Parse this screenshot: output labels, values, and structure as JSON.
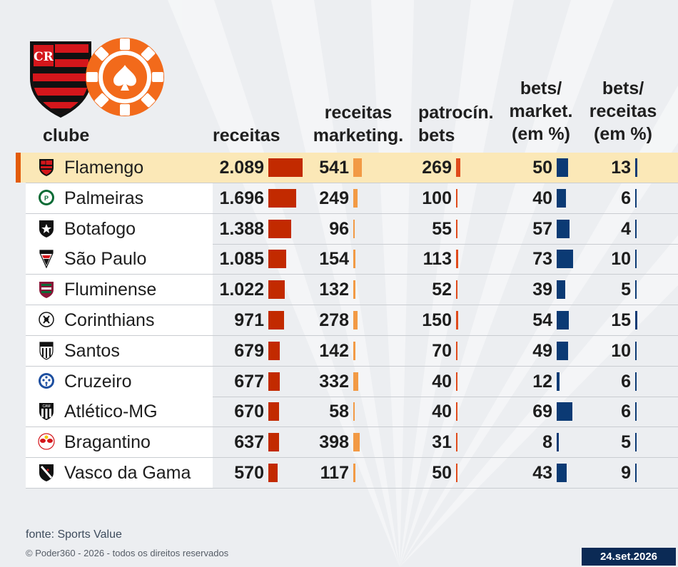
{
  "colors": {
    "receitas": "#c22a00",
    "marketing": "#f29a45",
    "patrocinio": "#e04a1a",
    "bets_share": "#0b3a74",
    "highlight_row": "#fbe8b7",
    "highlight_accent": "#e35b09",
    "date_box": "#0b2a55"
  },
  "icons": {
    "club_logo": "flamengo-crest-icon",
    "bet_logo": "poker-chip-spade-icon"
  },
  "headers": {
    "clube": "clube",
    "receitas": "receitas",
    "marketing_1": "receitas",
    "marketing_2": "marketing.",
    "patrocinio_1": "patrocín.",
    "patrocinio_2": "bets",
    "bets_market_1": "bets/",
    "bets_market_2": "market.",
    "bets_market_3": "(em %)",
    "bets_receitas_1": "bets/",
    "bets_receitas_2": "receitas",
    "bets_receitas_3": "(em %)"
  },
  "chart_data": {
    "type": "table",
    "columns": [
      "clube",
      "receitas",
      "receitas marketing.",
      "patrocín. bets",
      "bets/ market. (em %)",
      "bets/ receitas (em %)"
    ],
    "highlighted_row": "Flamengo",
    "rows": [
      {
        "club": "Flamengo",
        "crest": "flamengo-crest-icon",
        "receitas": "2.089",
        "receitas_v": 2089,
        "marketing": "541",
        "marketing_v": 541,
        "patrocinio": "269",
        "patrocinio_v": 269,
        "bets_market": "50",
        "bets_market_v": 50,
        "bets_receitas": "13",
        "bets_receitas_v": 13
      },
      {
        "club": "Palmeiras",
        "crest": "palmeiras-crest-icon",
        "receitas": "1.696",
        "receitas_v": 1696,
        "marketing": "249",
        "marketing_v": 249,
        "patrocinio": "100",
        "patrocinio_v": 100,
        "bets_market": "40",
        "bets_market_v": 40,
        "bets_receitas": "6",
        "bets_receitas_v": 6
      },
      {
        "club": "Botafogo",
        "crest": "botafogo-crest-icon",
        "receitas": "1.388",
        "receitas_v": 1388,
        "marketing": "96",
        "marketing_v": 96,
        "patrocinio": "55",
        "patrocinio_v": 55,
        "bets_market": "57",
        "bets_market_v": 57,
        "bets_receitas": "4",
        "bets_receitas_v": 4
      },
      {
        "club": "São Paulo",
        "crest": "sao-paulo-crest-icon",
        "receitas": "1.085",
        "receitas_v": 1085,
        "marketing": "154",
        "marketing_v": 154,
        "patrocinio": "113",
        "patrocinio_v": 113,
        "bets_market": "73",
        "bets_market_v": 73,
        "bets_receitas": "10",
        "bets_receitas_v": 10
      },
      {
        "club": "Fluminense",
        "crest": "fluminense-crest-icon",
        "receitas": "1.022",
        "receitas_v": 1022,
        "marketing": "132",
        "marketing_v": 132,
        "patrocinio": "52",
        "patrocinio_v": 52,
        "bets_market": "39",
        "bets_market_v": 39,
        "bets_receitas": "5",
        "bets_receitas_v": 5
      },
      {
        "club": "Corinthians",
        "crest": "corinthians-crest-icon",
        "receitas": "971",
        "receitas_v": 971,
        "marketing": "278",
        "marketing_v": 278,
        "patrocinio": "150",
        "patrocinio_v": 150,
        "bets_market": "54",
        "bets_market_v": 54,
        "bets_receitas": "15",
        "bets_receitas_v": 15
      },
      {
        "club": "Santos",
        "crest": "santos-crest-icon",
        "receitas": "679",
        "receitas_v": 679,
        "marketing": "142",
        "marketing_v": 142,
        "patrocinio": "70",
        "patrocinio_v": 70,
        "bets_market": "49",
        "bets_market_v": 49,
        "bets_receitas": "10",
        "bets_receitas_v": 10
      },
      {
        "club": "Cruzeiro",
        "crest": "cruzeiro-crest-icon",
        "receitas": "677",
        "receitas_v": 677,
        "marketing": "332",
        "marketing_v": 332,
        "patrocinio": "40",
        "patrocinio_v": 40,
        "bets_market": "12",
        "bets_market_v": 12,
        "bets_receitas": "6",
        "bets_receitas_v": 6
      },
      {
        "club": "Atlético-MG",
        "crest": "atletico-mg-crest-icon",
        "receitas": "670",
        "receitas_v": 670,
        "marketing": "58",
        "marketing_v": 58,
        "patrocinio": "40",
        "patrocinio_v": 40,
        "bets_market": "69",
        "bets_market_v": 69,
        "bets_receitas": "6",
        "bets_receitas_v": 6
      },
      {
        "club": "Bragantino",
        "crest": "bragantino-crest-icon",
        "receitas": "637",
        "receitas_v": 637,
        "marketing": "398",
        "marketing_v": 398,
        "patrocinio": "31",
        "patrocinio_v": 31,
        "bets_market": "8",
        "bets_market_v": 8,
        "bets_receitas": "5",
        "bets_receitas_v": 5
      },
      {
        "club": "Vasco da Gama",
        "crest": "vasco-crest-icon",
        "receitas": "570",
        "receitas_v": 570,
        "marketing": "117",
        "marketing_v": 117,
        "patrocinio": "50",
        "patrocinio_v": 50,
        "bets_market": "43",
        "bets_market_v": 43,
        "bets_receitas": "9",
        "bets_receitas_v": 9
      }
    ]
  },
  "footer": {
    "source": "fonte: Sports Value",
    "copyright": "© Poder360 - 2026 - todos os direitos reservados",
    "date": "24.set.2026"
  }
}
